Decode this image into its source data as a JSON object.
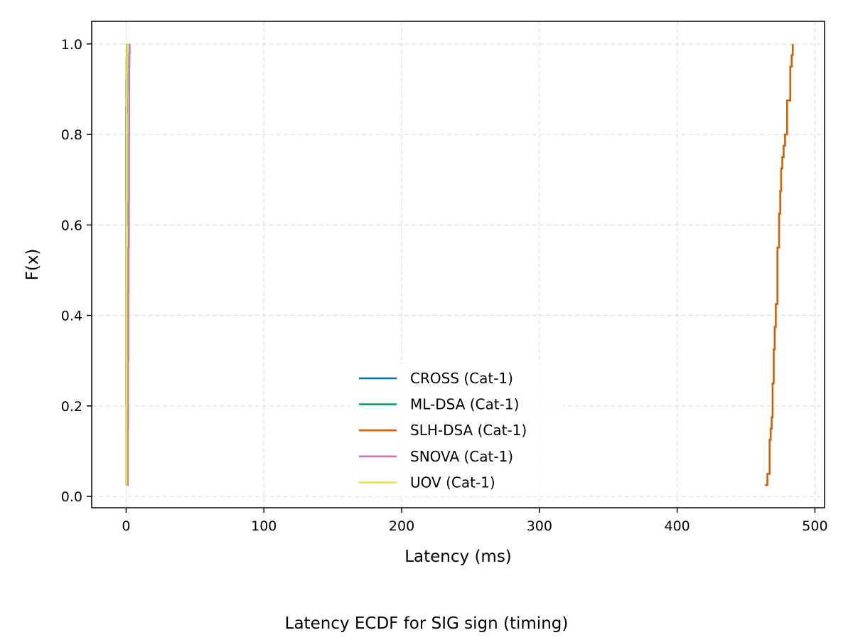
{
  "caption": "Latency ECDF for SIG sign (timing)",
  "chart_data": {
    "type": "line",
    "step": "post",
    "xlabel": "Latency (ms)",
    "ylabel": "F(x)",
    "xlim": [
      -25,
      507
    ],
    "ylim": [
      -0.025,
      1.05
    ],
    "xticks": [
      0,
      100,
      200,
      300,
      400,
      500
    ],
    "yticks": [
      0.0,
      0.2,
      0.4,
      0.6,
      0.8,
      1.0
    ],
    "xtick_labels": [
      "0",
      "100",
      "200",
      "300",
      "400",
      "500"
    ],
    "ytick_labels": [
      "0.0",
      "0.2",
      "0.4",
      "0.6",
      "0.8",
      "1.0"
    ],
    "grid": true,
    "legend_position": "lower center",
    "series": [
      {
        "name": "CROSS (Cat-1)",
        "color": "#0072b2",
        "x": [
          0.3,
          0.3,
          0.3,
          0.4,
          0.4,
          0.5,
          0.5,
          0.6,
          0.7,
          0.8
        ],
        "y": [
          0.025,
          0.15,
          0.3,
          0.45,
          0.6,
          0.75,
          0.85,
          0.9,
          0.95,
          1.0
        ]
      },
      {
        "name": "ML-DSA (Cat-1)",
        "color": "#009e73",
        "x": [
          0.1,
          0.1,
          0.1,
          0.1,
          0.1,
          0.1,
          0.2,
          0.3,
          0.4,
          0.5
        ],
        "y": [
          0.025,
          0.2,
          0.4,
          0.6,
          0.8,
          0.86,
          0.92,
          0.97,
          0.99,
          1.0
        ]
      },
      {
        "name": "SLH-DSA (Cat-1)",
        "color": "#d55e00",
        "x": [
          463.8,
          465.5,
          467.1,
          467.9,
          468.6,
          469.3,
          470.1,
          470.8,
          471.6,
          472.8,
          474.0,
          474.8,
          475.5,
          476.3,
          477.3,
          478.3,
          479.8,
          482.1,
          483.1,
          483.9
        ],
        "y": [
          0.025,
          0.05,
          0.125,
          0.15,
          0.175,
          0.25,
          0.325,
          0.375,
          0.425,
          0.55,
          0.625,
          0.675,
          0.725,
          0.75,
          0.775,
          0.8,
          0.875,
          0.95,
          0.975,
          1.0
        ]
      },
      {
        "name": "SNOVA (Cat-1)",
        "color": "#cc79a7",
        "x": [
          1.0,
          1.2,
          1.4,
          1.6,
          1.8,
          2.0,
          2.1,
          2.2,
          2.4,
          2.6
        ],
        "y": [
          0.025,
          0.15,
          0.3,
          0.45,
          0.55,
          0.65,
          0.8,
          0.95,
          0.98,
          1.0
        ]
      },
      {
        "name": "UOV (Cat-1)",
        "color": "#f0e442",
        "x": [
          0.2,
          0.2,
          0.3,
          0.3,
          0.3,
          0.4,
          0.4,
          0.5,
          0.6,
          0.7
        ],
        "y": [
          0.025,
          0.2,
          0.35,
          0.5,
          0.65,
          0.8,
          0.88,
          0.94,
          0.98,
          1.0
        ]
      }
    ]
  }
}
